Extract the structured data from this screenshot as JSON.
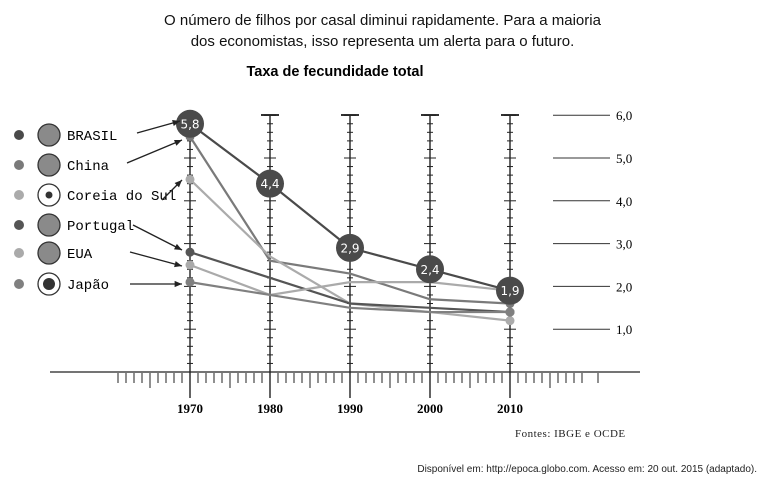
{
  "header": {
    "line1": "O número de filhos por casal diminui rapidamente. Para a maioria",
    "line2": "dos economistas, isso representa um alerta para o futuro."
  },
  "chart_data": {
    "type": "line",
    "title": "Taxa de fecundidade total",
    "x": [
      1970,
      1980,
      1990,
      2000,
      2010
    ],
    "x_tick_labels": [
      "1970",
      "1980",
      "1990",
      "2000",
      "2010"
    ],
    "ylim": [
      0,
      6.5
    ],
    "y_ticks": [
      1,
      2,
      3,
      4,
      5,
      6
    ],
    "y_tick_labels": [
      "1,0",
      "2,0",
      "3,0",
      "4,0",
      "5,0",
      "6,0"
    ],
    "legend_placement": "left",
    "series": [
      {
        "name": "BRASIL",
        "color": "#4a4a4a",
        "values": [
          5.8,
          4.4,
          2.9,
          2.4,
          1.9
        ],
        "labels": [
          "5,8",
          "4,4",
          "2,9",
          "2,4",
          "1,9"
        ]
      },
      {
        "name": "China",
        "color": "#7a7a7a",
        "values": [
          5.5,
          2.6,
          2.3,
          1.7,
          1.6
        ]
      },
      {
        "name": "Coreia do Sul",
        "color": "#ababab",
        "values": [
          4.5,
          2.7,
          1.6,
          1.4,
          1.2
        ]
      },
      {
        "name": "Portugal",
        "color": "#555555",
        "values": [
          2.8,
          2.2,
          1.6,
          1.5,
          1.4
        ]
      },
      {
        "name": "EUA",
        "color": "#aaaaaa",
        "values": [
          2.5,
          1.8,
          2.1,
          2.1,
          1.9
        ]
      },
      {
        "name": "Japão",
        "color": "#808080",
        "values": [
          2.1,
          1.8,
          1.5,
          1.4,
          1.4
        ]
      }
    ]
  },
  "source": "Fontes: IBGE e OCDE",
  "citation": "Disponível em: http://epoca.globo.com. Acesso em: 20 out. 2015 (adaptado)."
}
